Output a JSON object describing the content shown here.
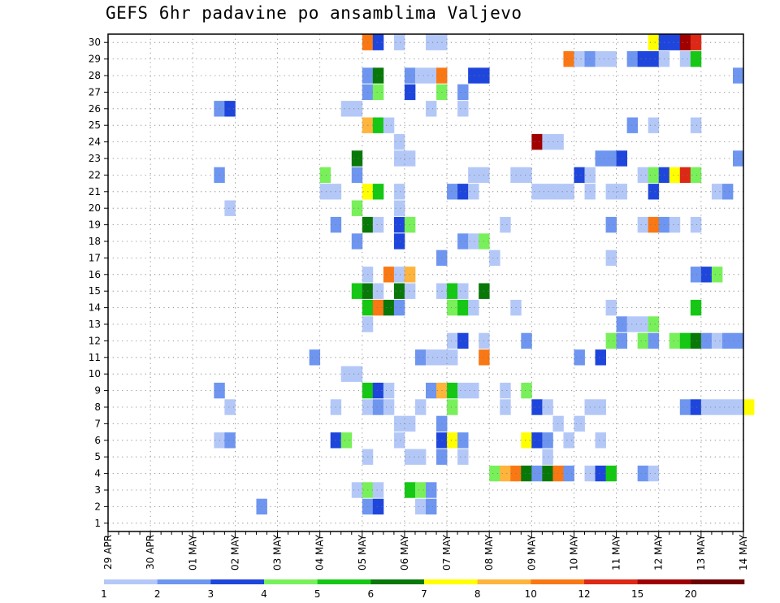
{
  "chart_data": {
    "type": "heatmap",
    "title": "GEFS 6hr padavine po ansamblima Valjevo",
    "members": 30,
    "x_tick_labels": [
      "29 APR",
      "30 APR",
      "01 MAY",
      "02 MAY",
      "03 MAY",
      "04 MAY",
      "05 MAY",
      "06 MAY",
      "07 MAY",
      "08 MAY",
      "09 MAY",
      "10 MAY",
      "11 MAY",
      "12 MAY",
      "13 MAY",
      "14 MAY"
    ],
    "y_tick_labels": [
      "1",
      "2",
      "3",
      "4",
      "5",
      "6",
      "7",
      "8",
      "9",
      "10",
      "11",
      "12",
      "13",
      "14",
      "15",
      "16",
      "17",
      "18",
      "19",
      "20",
      "21",
      "22",
      "23",
      "24",
      "25",
      "26",
      "27",
      "28",
      "29",
      "30"
    ],
    "colorbar": {
      "labels": [
        "1",
        "2",
        "3",
        "4",
        "5",
        "6",
        "7",
        "8",
        "10",
        "12",
        "15",
        "20"
      ],
      "colors": [
        "#b4c8f8",
        "#6e96f0",
        "#1e46dc",
        "#78f05a",
        "#14c814",
        "#087808",
        "#ffff00",
        "#ffb43c",
        "#fa7814",
        "#dc2814",
        "#a00000",
        "#6e0000"
      ]
    },
    "cells": [
      {
        "m": 30,
        "s": 24,
        "c": 9
      },
      {
        "m": 30,
        "s": 25,
        "c": 3
      },
      {
        "m": 30,
        "s": 27,
        "c": 1
      },
      {
        "m": 30,
        "s": 30,
        "c": 1
      },
      {
        "m": 30,
        "s": 31,
        "c": 1
      },
      {
        "m": 30,
        "s": 51,
        "c": 7
      },
      {
        "m": 30,
        "s": 52,
        "c": 3
      },
      {
        "m": 30,
        "s": 53,
        "c": 3
      },
      {
        "m": 30,
        "s": 54,
        "c": 11
      },
      {
        "m": 30,
        "s": 55,
        "c": 10
      },
      {
        "m": 29,
        "s": 43,
        "c": 9
      },
      {
        "m": 29,
        "s": 44,
        "c": 1
      },
      {
        "m": 29,
        "s": 45,
        "c": 2
      },
      {
        "m": 29,
        "s": 46,
        "c": 1
      },
      {
        "m": 29,
        "s": 47,
        "c": 1
      },
      {
        "m": 29,
        "s": 49,
        "c": 2
      },
      {
        "m": 29,
        "s": 50,
        "c": 3
      },
      {
        "m": 29,
        "s": 51,
        "c": 3
      },
      {
        "m": 29,
        "s": 52,
        "c": 1
      },
      {
        "m": 29,
        "s": 54,
        "c": 1
      },
      {
        "m": 29,
        "s": 55,
        "c": 5
      },
      {
        "m": 28,
        "s": 24,
        "c": 2
      },
      {
        "m": 28,
        "s": 25,
        "c": 6
      },
      {
        "m": 28,
        "s": 28,
        "c": 2
      },
      {
        "m": 28,
        "s": 29,
        "c": 1
      },
      {
        "m": 28,
        "s": 30,
        "c": 1
      },
      {
        "m": 28,
        "s": 31,
        "c": 9
      },
      {
        "m": 28,
        "s": 34,
        "c": 3
      },
      {
        "m": 28,
        "s": 35,
        "c": 3
      },
      {
        "m": 28,
        "s": 59,
        "c": 2
      },
      {
        "m": 27,
        "s": 24,
        "c": 2
      },
      {
        "m": 27,
        "s": 25,
        "c": 4
      },
      {
        "m": 27,
        "s": 28,
        "c": 3
      },
      {
        "m": 27,
        "s": 31,
        "c": 4
      },
      {
        "m": 27,
        "s": 33,
        "c": 2
      },
      {
        "m": 26,
        "s": 10,
        "c": 2
      },
      {
        "m": 26,
        "s": 11,
        "c": 3
      },
      {
        "m": 26,
        "s": 22,
        "c": 1
      },
      {
        "m": 26,
        "s": 23,
        "c": 1
      },
      {
        "m": 26,
        "s": 30,
        "c": 1
      },
      {
        "m": 26,
        "s": 33,
        "c": 1
      },
      {
        "m": 25,
        "s": 24,
        "c": 8
      },
      {
        "m": 25,
        "s": 25,
        "c": 5
      },
      {
        "m": 25,
        "s": 26,
        "c": 1
      },
      {
        "m": 25,
        "s": 49,
        "c": 2
      },
      {
        "m": 25,
        "s": 51,
        "c": 1
      },
      {
        "m": 25,
        "s": 55,
        "c": 1
      },
      {
        "m": 24,
        "s": 27,
        "c": 1
      },
      {
        "m": 24,
        "s": 40,
        "c": 11
      },
      {
        "m": 24,
        "s": 41,
        "c": 1
      },
      {
        "m": 24,
        "s": 42,
        "c": 1
      },
      {
        "m": 23,
        "s": 23,
        "c": 6
      },
      {
        "m": 23,
        "s": 27,
        "c": 1
      },
      {
        "m": 23,
        "s": 28,
        "c": 1
      },
      {
        "m": 23,
        "s": 46,
        "c": 2
      },
      {
        "m": 23,
        "s": 47,
        "c": 2
      },
      {
        "m": 23,
        "s": 48,
        "c": 3
      },
      {
        "m": 23,
        "s": 59,
        "c": 2
      },
      {
        "m": 22,
        "s": 10,
        "c": 2
      },
      {
        "m": 22,
        "s": 20,
        "c": 4
      },
      {
        "m": 22,
        "s": 23,
        "c": 2
      },
      {
        "m": 22,
        "s": 34,
        "c": 1
      },
      {
        "m": 22,
        "s": 35,
        "c": 1
      },
      {
        "m": 22,
        "s": 38,
        "c": 1
      },
      {
        "m": 22,
        "s": 39,
        "c": 1
      },
      {
        "m": 22,
        "s": 44,
        "c": 3
      },
      {
        "m": 22,
        "s": 45,
        "c": 1
      },
      {
        "m": 22,
        "s": 50,
        "c": 1
      },
      {
        "m": 22,
        "s": 51,
        "c": 4
      },
      {
        "m": 22,
        "s": 52,
        "c": 3
      },
      {
        "m": 22,
        "s": 53,
        "c": 7
      },
      {
        "m": 22,
        "s": 54,
        "c": 10
      },
      {
        "m": 22,
        "s": 55,
        "c": 4
      },
      {
        "m": 21,
        "s": 20,
        "c": 1
      },
      {
        "m": 21,
        "s": 21,
        "c": 1
      },
      {
        "m": 21,
        "s": 24,
        "c": 7
      },
      {
        "m": 21,
        "s": 25,
        "c": 5
      },
      {
        "m": 21,
        "s": 27,
        "c": 1
      },
      {
        "m": 21,
        "s": 32,
        "c": 2
      },
      {
        "m": 21,
        "s": 33,
        "c": 3
      },
      {
        "m": 21,
        "s": 34,
        "c": 1
      },
      {
        "m": 21,
        "s": 40,
        "c": 1
      },
      {
        "m": 21,
        "s": 41,
        "c": 1
      },
      {
        "m": 21,
        "s": 42,
        "c": 1
      },
      {
        "m": 21,
        "s": 43,
        "c": 1
      },
      {
        "m": 21,
        "s": 45,
        "c": 1
      },
      {
        "m": 21,
        "s": 47,
        "c": 1
      },
      {
        "m": 21,
        "s": 48,
        "c": 1
      },
      {
        "m": 21,
        "s": 51,
        "c": 3
      },
      {
        "m": 21,
        "s": 57,
        "c": 1
      },
      {
        "m": 21,
        "s": 58,
        "c": 2
      },
      {
        "m": 20,
        "s": 11,
        "c": 1
      },
      {
        "m": 20,
        "s": 23,
        "c": 4
      },
      {
        "m": 20,
        "s": 27,
        "c": 1
      },
      {
        "m": 19,
        "s": 21,
        "c": 2
      },
      {
        "m": 19,
        "s": 24,
        "c": 6
      },
      {
        "m": 19,
        "s": 25,
        "c": 1
      },
      {
        "m": 19,
        "s": 27,
        "c": 3
      },
      {
        "m": 19,
        "s": 28,
        "c": 4
      },
      {
        "m": 19,
        "s": 37,
        "c": 1
      },
      {
        "m": 19,
        "s": 47,
        "c": 2
      },
      {
        "m": 19,
        "s": 50,
        "c": 1
      },
      {
        "m": 19,
        "s": 51,
        "c": 9
      },
      {
        "m": 19,
        "s": 52,
        "c": 2
      },
      {
        "m": 19,
        "s": 53,
        "c": 1
      },
      {
        "m": 19,
        "s": 55,
        "c": 1
      },
      {
        "m": 18,
        "s": 23,
        "c": 2
      },
      {
        "m": 18,
        "s": 27,
        "c": 3
      },
      {
        "m": 18,
        "s": 33,
        "c": 2
      },
      {
        "m": 18,
        "s": 34,
        "c": 1
      },
      {
        "m": 18,
        "s": 35,
        "c": 4
      },
      {
        "m": 17,
        "s": 31,
        "c": 2
      },
      {
        "m": 17,
        "s": 36,
        "c": 1
      },
      {
        "m": 17,
        "s": 47,
        "c": 1
      },
      {
        "m": 16,
        "s": 24,
        "c": 1
      },
      {
        "m": 16,
        "s": 26,
        "c": 9
      },
      {
        "m": 16,
        "s": 27,
        "c": 1
      },
      {
        "m": 16,
        "s": 28,
        "c": 8
      },
      {
        "m": 16,
        "s": 55,
        "c": 2
      },
      {
        "m": 16,
        "s": 56,
        "c": 3
      },
      {
        "m": 16,
        "s": 57,
        "c": 4
      },
      {
        "m": 15,
        "s": 23,
        "c": 5
      },
      {
        "m": 15,
        "s": 24,
        "c": 6
      },
      {
        "m": 15,
        "s": 25,
        "c": 1
      },
      {
        "m": 15,
        "s": 27,
        "c": 6
      },
      {
        "m": 15,
        "s": 28,
        "c": 1
      },
      {
        "m": 15,
        "s": 31,
        "c": 1
      },
      {
        "m": 15,
        "s": 32,
        "c": 5
      },
      {
        "m": 15,
        "s": 33,
        "c": 1
      },
      {
        "m": 15,
        "s": 35,
        "c": 6
      },
      {
        "m": 14,
        "s": 24,
        "c": 5
      },
      {
        "m": 14,
        "s": 25,
        "c": 9
      },
      {
        "m": 14,
        "s": 26,
        "c": 6
      },
      {
        "m": 14,
        "s": 27,
        "c": 2
      },
      {
        "m": 14,
        "s": 32,
        "c": 4
      },
      {
        "m": 14,
        "s": 33,
        "c": 5
      },
      {
        "m": 14,
        "s": 34,
        "c": 1
      },
      {
        "m": 14,
        "s": 38,
        "c": 1
      },
      {
        "m": 14,
        "s": 47,
        "c": 1
      },
      {
        "m": 14,
        "s": 55,
        "c": 5
      },
      {
        "m": 13,
        "s": 24,
        "c": 1
      },
      {
        "m": 13,
        "s": 48,
        "c": 2
      },
      {
        "m": 13,
        "s": 49,
        "c": 1
      },
      {
        "m": 13,
        "s": 50,
        "c": 1
      },
      {
        "m": 13,
        "s": 51,
        "c": 4
      },
      {
        "m": 12,
        "s": 32,
        "c": 1
      },
      {
        "m": 12,
        "s": 33,
        "c": 3
      },
      {
        "m": 12,
        "s": 35,
        "c": 1
      },
      {
        "m": 12,
        "s": 39,
        "c": 2
      },
      {
        "m": 12,
        "s": 47,
        "c": 4
      },
      {
        "m": 12,
        "s": 48,
        "c": 2
      },
      {
        "m": 12,
        "s": 50,
        "c": 4
      },
      {
        "m": 12,
        "s": 51,
        "c": 2
      },
      {
        "m": 12,
        "s": 53,
        "c": 4
      },
      {
        "m": 12,
        "s": 54,
        "c": 5
      },
      {
        "m": 12,
        "s": 55,
        "c": 6
      },
      {
        "m": 12,
        "s": 56,
        "c": 2
      },
      {
        "m": 12,
        "s": 57,
        "c": 1
      },
      {
        "m": 12,
        "s": 58,
        "c": 2
      },
      {
        "m": 12,
        "s": 59,
        "c": 2
      },
      {
        "m": 11,
        "s": 19,
        "c": 2
      },
      {
        "m": 11,
        "s": 29,
        "c": 2
      },
      {
        "m": 11,
        "s": 30,
        "c": 1
      },
      {
        "m": 11,
        "s": 31,
        "c": 1
      },
      {
        "m": 11,
        "s": 32,
        "c": 1
      },
      {
        "m": 11,
        "s": 35,
        "c": 9
      },
      {
        "m": 11,
        "s": 44,
        "c": 2
      },
      {
        "m": 11,
        "s": 46,
        "c": 3
      },
      {
        "m": 10,
        "s": 22,
        "c": 1
      },
      {
        "m": 10,
        "s": 23,
        "c": 1
      },
      {
        "m": 9,
        "s": 10,
        "c": 2
      },
      {
        "m": 9,
        "s": 24,
        "c": 5
      },
      {
        "m": 9,
        "s": 25,
        "c": 3
      },
      {
        "m": 9,
        "s": 26,
        "c": 1
      },
      {
        "m": 9,
        "s": 30,
        "c": 2
      },
      {
        "m": 9,
        "s": 31,
        "c": 8
      },
      {
        "m": 9,
        "s": 32,
        "c": 5
      },
      {
        "m": 9,
        "s": 33,
        "c": 1
      },
      {
        "m": 9,
        "s": 34,
        "c": 1
      },
      {
        "m": 9,
        "s": 37,
        "c": 1
      },
      {
        "m": 9,
        "s": 39,
        "c": 4
      },
      {
        "m": 8,
        "s": 11,
        "c": 1
      },
      {
        "m": 8,
        "s": 21,
        "c": 1
      },
      {
        "m": 8,
        "s": 24,
        "c": 1
      },
      {
        "m": 8,
        "s": 25,
        "c": 2
      },
      {
        "m": 8,
        "s": 26,
        "c": 1
      },
      {
        "m": 8,
        "s": 29,
        "c": 1
      },
      {
        "m": 8,
        "s": 32,
        "c": 4
      },
      {
        "m": 8,
        "s": 37,
        "c": 1
      },
      {
        "m": 8,
        "s": 40,
        "c": 3
      },
      {
        "m": 8,
        "s": 41,
        "c": 1
      },
      {
        "m": 8,
        "s": 45,
        "c": 1
      },
      {
        "m": 8,
        "s": 46,
        "c": 1
      },
      {
        "m": 8,
        "s": 54,
        "c": 2
      },
      {
        "m": 8,
        "s": 55,
        "c": 3
      },
      {
        "m": 8,
        "s": 56,
        "c": 1
      },
      {
        "m": 8,
        "s": 57,
        "c": 1
      },
      {
        "m": 8,
        "s": 58,
        "c": 1
      },
      {
        "m": 8,
        "s": 59,
        "c": 1
      },
      {
        "m": 8,
        "s": 60,
        "c": 7
      },
      {
        "m": 7,
        "s": 27,
        "c": 1
      },
      {
        "m": 7,
        "s": 28,
        "c": 1
      },
      {
        "m": 7,
        "s": 31,
        "c": 2
      },
      {
        "m": 7,
        "s": 42,
        "c": 1
      },
      {
        "m": 7,
        "s": 44,
        "c": 1
      },
      {
        "m": 6,
        "s": 10,
        "c": 1
      },
      {
        "m": 6,
        "s": 11,
        "c": 2
      },
      {
        "m": 6,
        "s": 21,
        "c": 3
      },
      {
        "m": 6,
        "s": 22,
        "c": 4
      },
      {
        "m": 6,
        "s": 27,
        "c": 1
      },
      {
        "m": 6,
        "s": 31,
        "c": 3
      },
      {
        "m": 6,
        "s": 32,
        "c": 7
      },
      {
        "m": 6,
        "s": 33,
        "c": 2
      },
      {
        "m": 6,
        "s": 39,
        "c": 7
      },
      {
        "m": 6,
        "s": 40,
        "c": 3
      },
      {
        "m": 6,
        "s": 41,
        "c": 2
      },
      {
        "m": 6,
        "s": 43,
        "c": 1
      },
      {
        "m": 6,
        "s": 46,
        "c": 1
      },
      {
        "m": 5,
        "s": 24,
        "c": 1
      },
      {
        "m": 5,
        "s": 28,
        "c": 1
      },
      {
        "m": 5,
        "s": 29,
        "c": 1
      },
      {
        "m": 5,
        "s": 31,
        "c": 2
      },
      {
        "m": 5,
        "s": 33,
        "c": 1
      },
      {
        "m": 5,
        "s": 41,
        "c": 1
      },
      {
        "m": 4,
        "s": 36,
        "c": 4
      },
      {
        "m": 4,
        "s": 37,
        "c": 8
      },
      {
        "m": 4,
        "s": 38,
        "c": 9
      },
      {
        "m": 4,
        "s": 39,
        "c": 6
      },
      {
        "m": 4,
        "s": 40,
        "c": 2
      },
      {
        "m": 4,
        "s": 41,
        "c": 6
      },
      {
        "m": 4,
        "s": 42,
        "c": 9
      },
      {
        "m": 4,
        "s": 43,
        "c": 2
      },
      {
        "m": 4,
        "s": 45,
        "c": 1
      },
      {
        "m": 4,
        "s": 46,
        "c": 3
      },
      {
        "m": 4,
        "s": 47,
        "c": 5
      },
      {
        "m": 4,
        "s": 50,
        "c": 2
      },
      {
        "m": 4,
        "s": 51,
        "c": 1
      },
      {
        "m": 3,
        "s": 23,
        "c": 1
      },
      {
        "m": 3,
        "s": 24,
        "c": 4
      },
      {
        "m": 3,
        "s": 25,
        "c": 1
      },
      {
        "m": 3,
        "s": 28,
        "c": 5
      },
      {
        "m": 3,
        "s": 29,
        "c": 4
      },
      {
        "m": 3,
        "s": 30,
        "c": 2
      },
      {
        "m": 2,
        "s": 14,
        "c": 2
      },
      {
        "m": 2,
        "s": 24,
        "c": 2
      },
      {
        "m": 2,
        "s": 25,
        "c": 3
      },
      {
        "m": 2,
        "s": 29,
        "c": 1
      },
      {
        "m": 2,
        "s": 30,
        "c": 2
      }
    ]
  }
}
